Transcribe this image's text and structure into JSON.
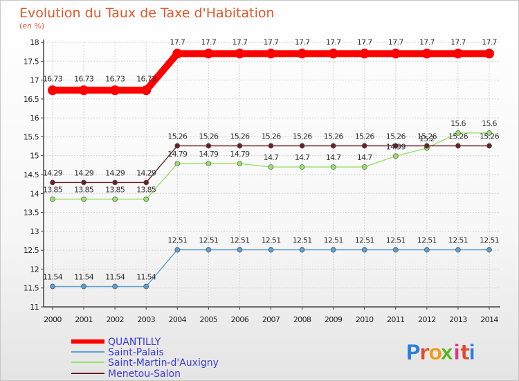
{
  "chart_data": {
    "type": "line",
    "title": "Evolution du Taux de Taxe d'Habitation",
    "subtitle": "(en %)",
    "x": [
      "2000",
      "2001",
      "2002",
      "2003",
      "2004",
      "2005",
      "2006",
      "2007",
      "2008",
      "2009",
      "2010",
      "2011",
      "2012",
      "2013",
      "2014"
    ],
    "ylim": [
      11,
      18
    ],
    "yticks": [
      "11",
      "11.5",
      "12",
      "12.5",
      "13",
      "13.5",
      "14",
      "14.5",
      "15",
      "15.5",
      "16",
      "16.5",
      "17",
      "17.5",
      "18"
    ],
    "grid": true,
    "legend_position": "bottom-left",
    "series": [
      {
        "name": "QUANTILLY",
        "color": "#ff0000",
        "values": [
          16.73,
          16.73,
          16.73,
          16.73,
          17.7,
          17.7,
          17.7,
          17.7,
          17.7,
          17.7,
          17.7,
          17.7,
          17.7,
          17.7,
          17.7
        ],
        "labels": [
          "16.73",
          "16.73",
          "16.73",
          "16.73",
          "17.7",
          "17.7",
          "17.7",
          "17.7",
          "17.7",
          "17.7",
          "17.7",
          "17.7",
          "17.7",
          "17.7",
          "17.7"
        ]
      },
      {
        "name": "Saint-Palais",
        "color": "#5a9fd4",
        "values": [
          11.54,
          11.54,
          11.54,
          11.54,
          12.51,
          12.51,
          12.51,
          12.51,
          12.51,
          12.51,
          12.51,
          12.51,
          12.51,
          12.51,
          12.51
        ],
        "labels": [
          "11.54",
          "11.54",
          "11.54",
          "11.54",
          "12.51",
          "12.51",
          "12.51",
          "12.51",
          "12.51",
          "12.51",
          "12.51",
          "12.51",
          "12.51",
          "12.51",
          "12.51"
        ]
      },
      {
        "name": "Saint-Martin-d'Auxigny",
        "color": "#99e06a",
        "values": [
          13.85,
          13.85,
          13.85,
          13.85,
          14.79,
          14.79,
          14.79,
          14.7,
          14.7,
          14.7,
          14.7,
          14.99,
          15.2,
          15.6,
          15.6
        ],
        "labels": [
          "13.85",
          "13.85",
          "13.85",
          "13.85",
          "14.79",
          "14.79",
          "14.79",
          "14.7",
          "14.7",
          "14.7",
          "14.7",
          "14.99",
          "15.2",
          "15.6",
          "15.6"
        ]
      },
      {
        "name": "Menetou-Salon",
        "color": "#6b1f27",
        "values": [
          14.29,
          14.29,
          14.29,
          14.29,
          15.26,
          15.26,
          15.26,
          15.26,
          15.26,
          15.26,
          15.26,
          15.26,
          15.26,
          15.26,
          15.26
        ],
        "labels": [
          "14.29",
          "14.29",
          "14.29",
          "14.29",
          "15.26",
          "15.26",
          "15.26",
          "15.26",
          "15.26",
          "15.26",
          "15.26",
          "15.26",
          "15.26",
          "15.26",
          "15.26"
        ]
      }
    ]
  },
  "logo": {
    "letters": [
      "P",
      "r",
      "o",
      "x",
      "i",
      "t",
      "i"
    ],
    "colors": [
      "#2e7fd6",
      "#e04a2b",
      "#f29a1d",
      "#5cb52a",
      "#d63a8a",
      "#e04a2b",
      "#2e7fd6"
    ]
  }
}
